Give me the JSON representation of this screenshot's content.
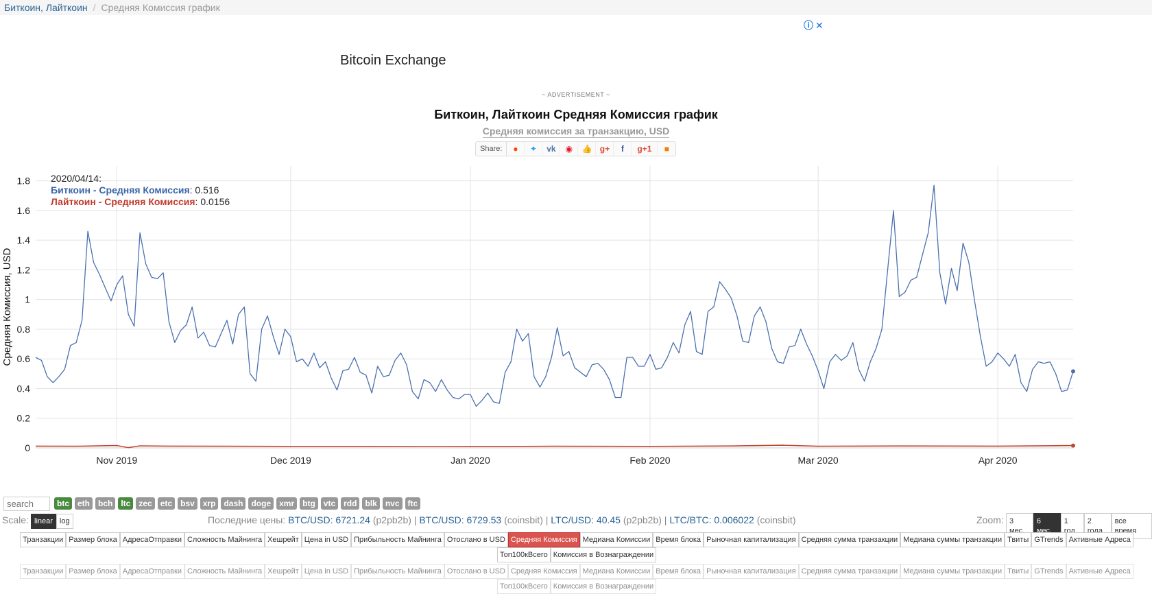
{
  "breadcrumb": {
    "link": "Биткоин, Лайткоин",
    "separator": "/",
    "current": "Средняя Комиссия график"
  },
  "ad": {
    "headline": "Bitcoin Exchange",
    "note": "~ ADVERTISEMENT ~",
    "info_icon": "ⓘ",
    "close_icon": "✕"
  },
  "share": {
    "label": "Share:",
    "icons": [
      "reddit-icon",
      "twitter-icon",
      "vk-icon",
      "weibo-icon",
      "like-icon",
      "google-plus-icon",
      "facebook-icon",
      "google-plus-one-icon",
      "blogger-icon"
    ]
  },
  "colors": {
    "btc": "#4a70b0",
    "ltc": "#c0472f",
    "active_tab": "#d9534f",
    "coin_on": "#4a8a3e",
    "coin_off": "#999999"
  },
  "tooltip": {
    "date": "2020/04/14:",
    "btc_label": "Биткоин - Средняя Комиссия",
    "btc_value": ": 0.516",
    "ltc_label": "Лайткоин - Средняя Комиссия",
    "ltc_value": ": 0.0156"
  },
  "controls": {
    "search_placeholder": "search",
    "coins": [
      {
        "label": "btc",
        "on": true
      },
      {
        "label": "eth",
        "on": false
      },
      {
        "label": "bch",
        "on": false
      },
      {
        "label": "ltc",
        "on": true
      },
      {
        "label": "zec",
        "on": false
      },
      {
        "label": "etc",
        "on": false
      },
      {
        "label": "bsv",
        "on": false
      },
      {
        "label": "xrp",
        "on": false
      },
      {
        "label": "dash",
        "on": false
      },
      {
        "label": "doge",
        "on": false
      },
      {
        "label": "xmr",
        "on": false
      },
      {
        "label": "btg",
        "on": false
      },
      {
        "label": "vtc",
        "on": false
      },
      {
        "label": "rdd",
        "on": false
      },
      {
        "label": "blk",
        "on": false
      },
      {
        "label": "nvc",
        "on": false
      },
      {
        "label": "ftc",
        "on": false
      }
    ],
    "scale_label": "Scale:",
    "scale_buttons": [
      {
        "label": "linear",
        "active": true
      },
      {
        "label": "log",
        "active": false
      }
    ],
    "zoom_label": "Zoom:",
    "zoom_buttons": [
      {
        "label": "3 мес.",
        "active": false
      },
      {
        "label": "6 мес.",
        "active": true
      },
      {
        "label": "1 год",
        "active": false
      },
      {
        "label": "2 года",
        "active": false
      },
      {
        "label": "все время",
        "active": false
      }
    ]
  },
  "prices": {
    "label": "Последние цены:",
    "btc_usd": "BTC/USD: 6721.24",
    "btc_usd_src": "(p2pb2b)",
    "btc_usd2": "BTC/USD: 6729.53",
    "btc_usd2_src": "(coinsbit)",
    "ltc_usd": "LTC/USD: 40.45",
    "ltc_usd_src": "(p2pb2b)",
    "ltc_btc": "LTC/BTC: 0.006022",
    "ltc_btc_src": "(coinsbit)"
  },
  "metrics": {
    "active": "Средняя Комиссия",
    "tabs": [
      "Транзакции",
      "Размер блока",
      "АдресаОтправки",
      "Сложность Майнинга",
      "Хешрейт",
      "Цена in USD",
      "Прибыльность Майнинга",
      "Отослано в USD",
      "Средняя Комиссия",
      "Медиана Комиссии",
      "Время блока",
      "Рыночная капитализация",
      "Средняя сумма транзакции",
      "Медиана суммы транзакции",
      "Твиты",
      "GTrends",
      "Активные Адреса",
      "Топ100кВсего",
      "Комиссия в Вознаграждении"
    ]
  },
  "chart_data": {
    "type": "line",
    "title": "Биткоин, Лайткоин Средняя Комиссия график",
    "subtitle": "Средняя комиссия за транзакцию, USD",
    "ylabel": "Средняя Комиссия, USD",
    "xlabel": "",
    "ylim": [
      0,
      1.9
    ],
    "yticks": [
      0,
      0.2,
      0.4,
      0.6,
      0.8,
      1,
      1.2,
      1.4,
      1.6,
      1.8
    ],
    "ytick_labels": [
      "0",
      "0.2",
      "0.4",
      "0.6",
      "0.8",
      "1",
      "1.2",
      "1.4",
      "1.6",
      "1.8"
    ],
    "x_start": "2019-10-18",
    "x_end": "2020-04-14",
    "x_ticks": [
      {
        "date": "2019-11-01",
        "label": "Nov 2019"
      },
      {
        "date": "2019-12-01",
        "label": "Dec 2019"
      },
      {
        "date": "2020-01-01",
        "label": "Jan 2020"
      },
      {
        "date": "2020-02-01",
        "label": "Feb 2020"
      },
      {
        "date": "2020-03-01",
        "label": "Mar 2020"
      },
      {
        "date": "2020-04-01",
        "label": "Apr 2020"
      }
    ],
    "grid": true,
    "series": [
      {
        "name": "Биткоин - Средняя Комиссия",
        "color": "#4a70b0",
        "points": [
          [
            "2019-10-18",
            0.61
          ],
          [
            "2019-10-19",
            0.59
          ],
          [
            "2019-10-20",
            0.48
          ],
          [
            "2019-10-21",
            0.44
          ],
          [
            "2019-10-22",
            0.48
          ],
          [
            "2019-10-23",
            0.53
          ],
          [
            "2019-10-24",
            0.69
          ],
          [
            "2019-10-25",
            0.71
          ],
          [
            "2019-10-26",
            0.86
          ],
          [
            "2019-10-27",
            1.46
          ],
          [
            "2019-10-28",
            1.25
          ],
          [
            "2019-10-29",
            1.17
          ],
          [
            "2019-10-30",
            1.08
          ],
          [
            "2019-10-31",
            0.99
          ],
          [
            "2019-11-01",
            1.1
          ],
          [
            "2019-11-02",
            1.16
          ],
          [
            "2019-11-03",
            0.9
          ],
          [
            "2019-11-04",
            0.82
          ],
          [
            "2019-11-05",
            1.45
          ],
          [
            "2019-11-06",
            1.24
          ],
          [
            "2019-11-07",
            1.15
          ],
          [
            "2019-11-08",
            1.14
          ],
          [
            "2019-11-09",
            1.18
          ],
          [
            "2019-11-10",
            0.85
          ],
          [
            "2019-11-11",
            0.71
          ],
          [
            "2019-11-12",
            0.79
          ],
          [
            "2019-11-13",
            0.83
          ],
          [
            "2019-11-14",
            0.95
          ],
          [
            "2019-11-15",
            0.74
          ],
          [
            "2019-11-16",
            0.78
          ],
          [
            "2019-11-17",
            0.69
          ],
          [
            "2019-11-18",
            0.68
          ],
          [
            "2019-11-19",
            0.77
          ],
          [
            "2019-11-20",
            0.86
          ],
          [
            "2019-11-21",
            0.7
          ],
          [
            "2019-11-22",
            0.9
          ],
          [
            "2019-11-23",
            0.95
          ],
          [
            "2019-11-24",
            0.5
          ],
          [
            "2019-11-25",
            0.45
          ],
          [
            "2019-11-26",
            0.8
          ],
          [
            "2019-11-27",
            0.89
          ],
          [
            "2019-11-28",
            0.75
          ],
          [
            "2019-11-29",
            0.63
          ],
          [
            "2019-11-30",
            0.8
          ],
          [
            "2019-12-01",
            0.75
          ],
          [
            "2019-12-02",
            0.58
          ],
          [
            "2019-12-03",
            0.6
          ],
          [
            "2019-12-04",
            0.55
          ],
          [
            "2019-12-05",
            0.64
          ],
          [
            "2019-12-06",
            0.54
          ],
          [
            "2019-12-07",
            0.58
          ],
          [
            "2019-12-08",
            0.47
          ],
          [
            "2019-12-09",
            0.39
          ],
          [
            "2019-12-10",
            0.52
          ],
          [
            "2019-12-11",
            0.53
          ],
          [
            "2019-12-12",
            0.61
          ],
          [
            "2019-12-13",
            0.51
          ],
          [
            "2019-12-14",
            0.49
          ],
          [
            "2019-12-15",
            0.37
          ],
          [
            "2019-12-16",
            0.55
          ],
          [
            "2019-12-17",
            0.48
          ],
          [
            "2019-12-18",
            0.49
          ],
          [
            "2019-12-19",
            0.59
          ],
          [
            "2019-12-20",
            0.64
          ],
          [
            "2019-12-21",
            0.56
          ],
          [
            "2019-12-22",
            0.38
          ],
          [
            "2019-12-23",
            0.33
          ],
          [
            "2019-12-24",
            0.46
          ],
          [
            "2019-12-25",
            0.44
          ],
          [
            "2019-12-26",
            0.38
          ],
          [
            "2019-12-27",
            0.46
          ],
          [
            "2019-12-28",
            0.39
          ],
          [
            "2019-12-29",
            0.34
          ],
          [
            "2019-12-30",
            0.33
          ],
          [
            "2019-12-31",
            0.36
          ],
          [
            "2020-01-01",
            0.36
          ],
          [
            "2020-01-02",
            0.28
          ],
          [
            "2020-01-03",
            0.32
          ],
          [
            "2020-01-04",
            0.37
          ],
          [
            "2020-01-05",
            0.31
          ],
          [
            "2020-01-06",
            0.3
          ],
          [
            "2020-01-07",
            0.51
          ],
          [
            "2020-01-08",
            0.58
          ],
          [
            "2020-01-09",
            0.8
          ],
          [
            "2020-01-10",
            0.72
          ],
          [
            "2020-01-11",
            0.77
          ],
          [
            "2020-01-12",
            0.48
          ],
          [
            "2020-01-13",
            0.41
          ],
          [
            "2020-01-14",
            0.48
          ],
          [
            "2020-01-15",
            0.61
          ],
          [
            "2020-01-16",
            0.81
          ],
          [
            "2020-01-17",
            0.62
          ],
          [
            "2020-01-18",
            0.65
          ],
          [
            "2020-01-19",
            0.54
          ],
          [
            "2020-01-20",
            0.51
          ],
          [
            "2020-01-21",
            0.48
          ],
          [
            "2020-01-22",
            0.56
          ],
          [
            "2020-01-23",
            0.57
          ],
          [
            "2020-01-24",
            0.53
          ],
          [
            "2020-01-25",
            0.46
          ],
          [
            "2020-01-26",
            0.34
          ],
          [
            "2020-01-27",
            0.34
          ],
          [
            "2020-01-28",
            0.61
          ],
          [
            "2020-01-29",
            0.61
          ],
          [
            "2020-01-30",
            0.55
          ],
          [
            "2020-01-31",
            0.55
          ],
          [
            "2020-02-01",
            0.63
          ],
          [
            "2020-02-02",
            0.53
          ],
          [
            "2020-02-03",
            0.54
          ],
          [
            "2020-02-04",
            0.61
          ],
          [
            "2020-02-05",
            0.71
          ],
          [
            "2020-02-06",
            0.64
          ],
          [
            "2020-02-07",
            0.83
          ],
          [
            "2020-02-08",
            0.92
          ],
          [
            "2020-02-09",
            0.65
          ],
          [
            "2020-02-10",
            0.63
          ],
          [
            "2020-02-11",
            0.92
          ],
          [
            "2020-02-12",
            0.95
          ],
          [
            "2020-02-13",
            1.12
          ],
          [
            "2020-02-14",
            1.07
          ],
          [
            "2020-02-15",
            1.01
          ],
          [
            "2020-02-16",
            0.89
          ],
          [
            "2020-02-17",
            0.72
          ],
          [
            "2020-02-18",
            0.71
          ],
          [
            "2020-02-19",
            0.89
          ],
          [
            "2020-02-20",
            0.95
          ],
          [
            "2020-02-21",
            0.85
          ],
          [
            "2020-02-22",
            0.67
          ],
          [
            "2020-02-23",
            0.58
          ],
          [
            "2020-02-24",
            0.57
          ],
          [
            "2020-02-25",
            0.68
          ],
          [
            "2020-02-26",
            0.69
          ],
          [
            "2020-02-27",
            0.8
          ],
          [
            "2020-02-28",
            0.7
          ],
          [
            "2020-02-29",
            0.62
          ],
          [
            "2020-03-01",
            0.52
          ],
          [
            "2020-03-02",
            0.4
          ],
          [
            "2020-03-03",
            0.58
          ],
          [
            "2020-03-04",
            0.63
          ],
          [
            "2020-03-05",
            0.59
          ],
          [
            "2020-03-06",
            0.62
          ],
          [
            "2020-03-07",
            0.71
          ],
          [
            "2020-03-08",
            0.53
          ],
          [
            "2020-03-09",
            0.45
          ],
          [
            "2020-03-10",
            0.58
          ],
          [
            "2020-03-11",
            0.67
          ],
          [
            "2020-03-12",
            0.8
          ],
          [
            "2020-03-13",
            1.2
          ],
          [
            "2020-03-14",
            1.6
          ],
          [
            "2020-03-15",
            1.02
          ],
          [
            "2020-03-16",
            1.05
          ],
          [
            "2020-03-17",
            1.13
          ],
          [
            "2020-03-18",
            1.15
          ],
          [
            "2020-03-19",
            1.3
          ],
          [
            "2020-03-20",
            1.45
          ],
          [
            "2020-03-21",
            1.77
          ],
          [
            "2020-03-22",
            1.18
          ],
          [
            "2020-03-23",
            0.97
          ],
          [
            "2020-03-24",
            1.21
          ],
          [
            "2020-03-25",
            1.06
          ],
          [
            "2020-03-26",
            1.38
          ],
          [
            "2020-03-27",
            1.25
          ],
          [
            "2020-03-28",
            0.99
          ],
          [
            "2020-03-29",
            0.75
          ],
          [
            "2020-03-30",
            0.55
          ],
          [
            "2020-03-31",
            0.58
          ],
          [
            "2020-04-01",
            0.64
          ],
          [
            "2020-04-02",
            0.6
          ],
          [
            "2020-04-03",
            0.55
          ],
          [
            "2020-04-04",
            0.63
          ],
          [
            "2020-04-05",
            0.44
          ],
          [
            "2020-04-06",
            0.38
          ],
          [
            "2020-04-07",
            0.53
          ],
          [
            "2020-04-08",
            0.58
          ],
          [
            "2020-04-09",
            0.57
          ],
          [
            "2020-04-10",
            0.58
          ],
          [
            "2020-04-11",
            0.5
          ],
          [
            "2020-04-12",
            0.38
          ],
          [
            "2020-04-13",
            0.39
          ],
          [
            "2020-04-14",
            0.516
          ]
        ]
      },
      {
        "name": "Лайткоин - Средняя Комиссия",
        "color": "#c0472f",
        "points": [
          [
            "2019-10-18",
            0.012
          ],
          [
            "2019-10-25",
            0.011
          ],
          [
            "2019-11-01",
            0.016
          ],
          [
            "2019-11-03",
            0.002
          ],
          [
            "2019-11-05",
            0.014
          ],
          [
            "2019-11-10",
            0.012
          ],
          [
            "2019-11-20",
            0.011
          ],
          [
            "2019-12-01",
            0.01
          ],
          [
            "2019-12-15",
            0.01
          ],
          [
            "2020-01-01",
            0.009
          ],
          [
            "2020-01-15",
            0.011
          ],
          [
            "2020-02-01",
            0.01
          ],
          [
            "2020-02-15",
            0.013
          ],
          [
            "2020-02-24",
            0.018
          ],
          [
            "2020-03-01",
            0.011
          ],
          [
            "2020-03-15",
            0.013
          ],
          [
            "2020-04-01",
            0.012
          ],
          [
            "2020-04-14",
            0.0156
          ]
        ]
      }
    ]
  }
}
